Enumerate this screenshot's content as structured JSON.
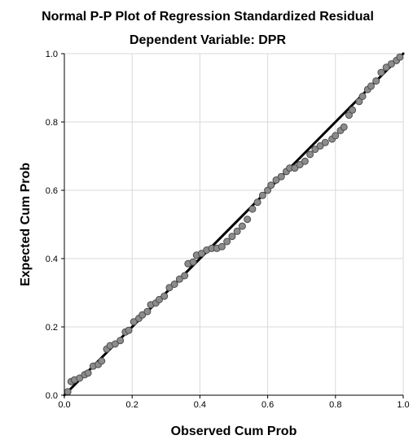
{
  "chart_data": {
    "type": "scatter",
    "title": "Normal P-P Plot of Regression Standardized Residual",
    "subtitle": "Dependent Variable: DPR",
    "xlabel": "Observed Cum Prob",
    "ylabel": "Expected Cum Prob",
    "xlim": [
      0.0,
      1.0
    ],
    "ylim": [
      0.0,
      1.0
    ],
    "xticks": [
      "0.0",
      "0.2",
      "0.4",
      "0.6",
      "0.8",
      "1.0"
    ],
    "yticks": [
      "0.0",
      "0.2",
      "0.4",
      "0.6",
      "0.8",
      "1.0"
    ],
    "grid": true,
    "reference_line": [
      [
        0.0,
        0.0
      ],
      [
        1.0,
        1.0
      ]
    ],
    "marker_color": "#8c8c8c",
    "marker_edge_color": "#4d4d4d",
    "line_color": "#000000",
    "grid_color": "#d9d9d9",
    "points": [
      [
        0.01,
        0.01
      ],
      [
        0.02,
        0.04
      ],
      [
        0.03,
        0.045
      ],
      [
        0.045,
        0.05
      ],
      [
        0.06,
        0.06
      ],
      [
        0.07,
        0.065
      ],
      [
        0.085,
        0.085
      ],
      [
        0.1,
        0.09
      ],
      [
        0.11,
        0.1
      ],
      [
        0.125,
        0.135
      ],
      [
        0.135,
        0.145
      ],
      [
        0.15,
        0.15
      ],
      [
        0.165,
        0.16
      ],
      [
        0.18,
        0.185
      ],
      [
        0.19,
        0.19
      ],
      [
        0.205,
        0.215
      ],
      [
        0.22,
        0.225
      ],
      [
        0.23,
        0.235
      ],
      [
        0.245,
        0.245
      ],
      [
        0.255,
        0.265
      ],
      [
        0.27,
        0.27
      ],
      [
        0.28,
        0.28
      ],
      [
        0.295,
        0.29
      ],
      [
        0.31,
        0.315
      ],
      [
        0.325,
        0.325
      ],
      [
        0.34,
        0.34
      ],
      [
        0.355,
        0.35
      ],
      [
        0.365,
        0.385
      ],
      [
        0.38,
        0.39
      ],
      [
        0.39,
        0.41
      ],
      [
        0.405,
        0.415
      ],
      [
        0.42,
        0.425
      ],
      [
        0.435,
        0.43
      ],
      [
        0.45,
        0.43
      ],
      [
        0.465,
        0.435
      ],
      [
        0.48,
        0.45
      ],
      [
        0.495,
        0.465
      ],
      [
        0.51,
        0.48
      ],
      [
        0.525,
        0.495
      ],
      [
        0.54,
        0.515
      ],
      [
        0.555,
        0.545
      ],
      [
        0.57,
        0.565
      ],
      [
        0.585,
        0.585
      ],
      [
        0.6,
        0.6
      ],
      [
        0.61,
        0.615
      ],
      [
        0.625,
        0.63
      ],
      [
        0.64,
        0.64
      ],
      [
        0.655,
        0.655
      ],
      [
        0.665,
        0.665
      ],
      [
        0.68,
        0.665
      ],
      [
        0.695,
        0.675
      ],
      [
        0.71,
        0.685
      ],
      [
        0.725,
        0.705
      ],
      [
        0.74,
        0.72
      ],
      [
        0.755,
        0.73
      ],
      [
        0.77,
        0.74
      ],
      [
        0.79,
        0.75
      ],
      [
        0.8,
        0.76
      ],
      [
        0.815,
        0.775
      ],
      [
        0.825,
        0.785
      ],
      [
        0.84,
        0.82
      ],
      [
        0.85,
        0.835
      ],
      [
        0.87,
        0.86
      ],
      [
        0.88,
        0.875
      ],
      [
        0.895,
        0.895
      ],
      [
        0.905,
        0.905
      ],
      [
        0.92,
        0.92
      ],
      [
        0.935,
        0.945
      ],
      [
        0.95,
        0.96
      ],
      [
        0.965,
        0.97
      ],
      [
        0.98,
        0.98
      ],
      [
        0.99,
        0.99
      ]
    ]
  }
}
